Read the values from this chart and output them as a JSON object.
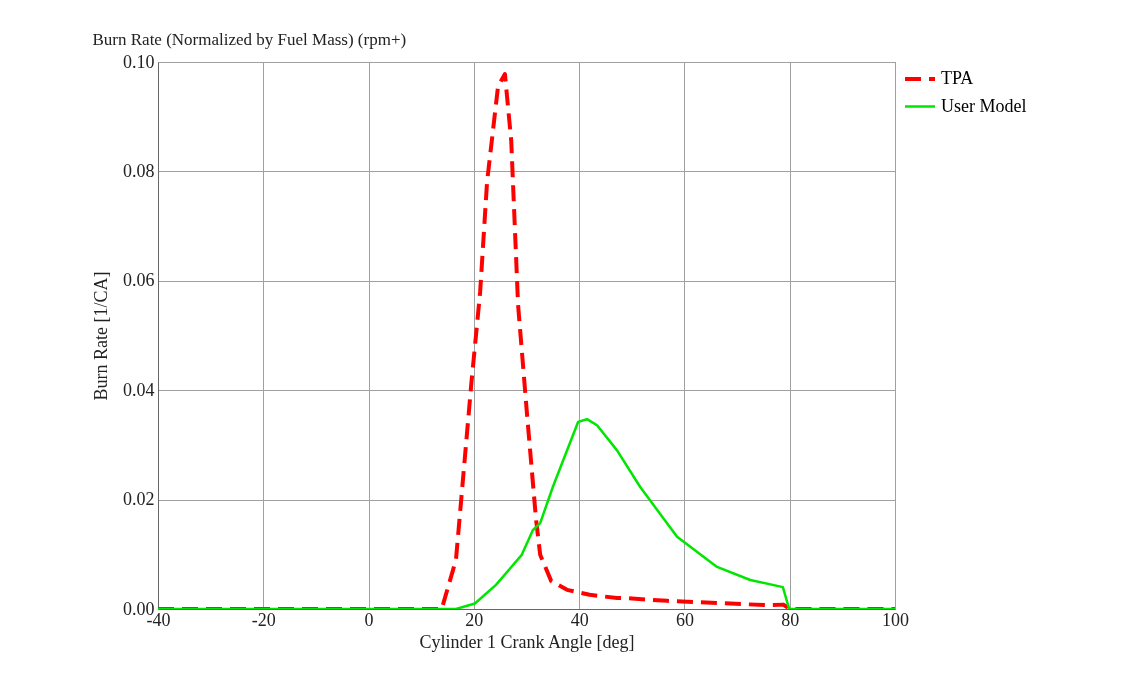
{
  "chart_data": {
    "type": "line",
    "title": "Burn Rate (Normalized by Fuel Mass) (rpm+)",
    "xlabel": "Cylinder  1 Crank Angle [deg]",
    "ylabel": "Burn Rate [1/CA]",
    "xlim": [
      -40,
      100
    ],
    "ylim": [
      0,
      0.1
    ],
    "xticks": [
      -40,
      -20,
      0,
      20,
      40,
      60,
      80,
      100
    ],
    "yticks": [
      {
        "value": 0,
        "label": "0.00"
      },
      {
        "value": 0.02,
        "label": "0.02"
      },
      {
        "value": 0.04,
        "label": "0.04"
      },
      {
        "value": 0.06,
        "label": "0.06"
      },
      {
        "value": 0.08,
        "label": "0.08"
      },
      {
        "value": 0.1,
        "label": "0.10"
      }
    ],
    "grid": true,
    "legend": "top right",
    "marker": "none",
    "series": [
      {
        "name": "TPA",
        "color": "#ff0000",
        "line_style": "dashed",
        "x": [
          -40,
          13.9,
          16.6,
          19.5,
          21.2,
          22.5,
          24.6,
          25.9,
          27.1,
          28.4,
          30.1,
          31.8,
          32.6,
          34.7,
          37.7,
          42,
          47.2,
          48.6,
          56.7,
          66.2,
          75.7,
          78.8,
          80,
          100
        ],
        "values": [
          0,
          0,
          0.009,
          0.041,
          0.058,
          0.078,
          0.0956,
          0.0978,
          0.0856,
          0.0556,
          0.0356,
          0.0165,
          0.0099,
          0.0051,
          0.0035,
          0.0026,
          0.002,
          0.002,
          0.0015,
          0.0011,
          0.0007,
          0.0008,
          0,
          0
        ]
      },
      {
        "name": "User Model",
        "color": "#00e600",
        "line_style": "solid",
        "x": [
          -40,
          13,
          16.6,
          20.2,
          24.2,
          29.1,
          31.2,
          32.6,
          35,
          39.8,
          41.5,
          43.4,
          47.2,
          51.6,
          58.6,
          66.2,
          72.5,
          78.7,
          79.9,
          100
        ],
        "values": [
          0,
          0,
          0,
          0.001,
          0.0044,
          0.0099,
          0.0144,
          0.0157,
          0.0223,
          0.0342,
          0.0347,
          0.0336,
          0.029,
          0.0223,
          0.0132,
          0.0077,
          0.0053,
          0.004,
          0,
          0
        ]
      }
    ]
  }
}
